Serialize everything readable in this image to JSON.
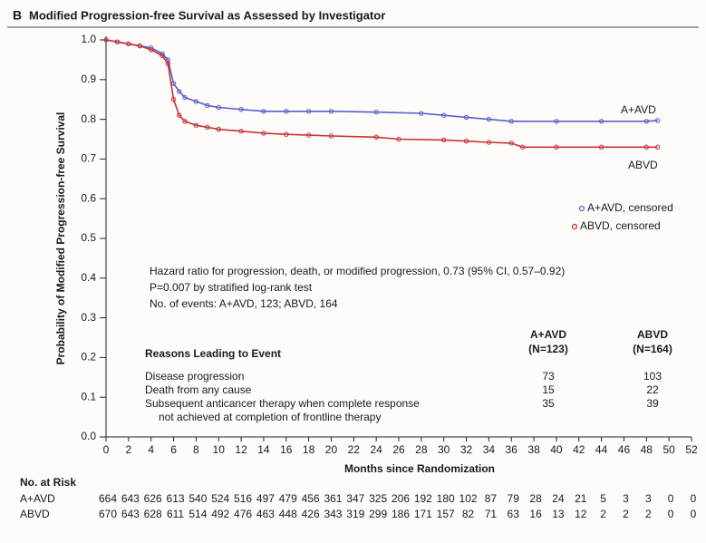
{
  "chart_data": {
    "type": "line",
    "panel": "B",
    "title": "Modified Progression-free Survival as Assessed by Investigator",
    "x_label": "Months since Randomization",
    "y_label": "Probability of Modified Progression-free Survival",
    "xlim": [
      0,
      52
    ],
    "ylim": [
      0,
      1
    ],
    "xticks": [
      0,
      2,
      4,
      6,
      8,
      10,
      12,
      14,
      16,
      18,
      20,
      22,
      24,
      26,
      28,
      30,
      32,
      34,
      36,
      38,
      40,
      42,
      44,
      46,
      48,
      50,
      52
    ],
    "yticks": [
      {
        "value": 0,
        "label": "0.0"
      },
      0.1,
      0.2,
      0.3,
      0.4,
      0.5,
      0.6,
      0.7,
      0.8,
      0.9,
      {
        "value": 1,
        "label": "1.0"
      }
    ],
    "series": [
      {
        "name": "A+AVD",
        "censored_label": "A+AVD, censored",
        "color": "#5a5fd0",
        "x": [
          0,
          1,
          2,
          3,
          4,
          5,
          5.5,
          6,
          6.5,
          7,
          8,
          9,
          10,
          12,
          14,
          16,
          18,
          20,
          24,
          28,
          30,
          32,
          34,
          36,
          40,
          44,
          48,
          49
        ],
        "values": [
          1.0,
          0.995,
          0.99,
          0.985,
          0.98,
          0.965,
          0.95,
          0.89,
          0.87,
          0.855,
          0.845,
          0.835,
          0.83,
          0.825,
          0.82,
          0.82,
          0.82,
          0.82,
          0.818,
          0.815,
          0.81,
          0.805,
          0.8,
          0.795,
          0.795,
          0.795,
          0.795,
          0.797
        ]
      },
      {
        "name": "ABVD",
        "censored_label": "ABVD, censored",
        "color": "#c8323a",
        "x": [
          0,
          1,
          2,
          3,
          4,
          5,
          5.5,
          6,
          6.5,
          7,
          8,
          9,
          10,
          12,
          14,
          16,
          18,
          20,
          24,
          26,
          30,
          32,
          34,
          36,
          37,
          40,
          44,
          48,
          49
        ],
        "values": [
          1.0,
          0.995,
          0.99,
          0.985,
          0.975,
          0.96,
          0.94,
          0.85,
          0.81,
          0.795,
          0.785,
          0.78,
          0.775,
          0.77,
          0.765,
          0.762,
          0.76,
          0.758,
          0.755,
          0.75,
          0.748,
          0.745,
          0.742,
          0.74,
          0.73,
          0.73,
          0.73,
          0.73,
          0.73
        ]
      }
    ],
    "annotations": [
      "Hazard ratio for progression, death, or modified progression, 0.73 (95% CI, 0.57–0.92)",
      "P=0.007 by stratified log-rank test",
      "No. of events: A+AVD, 123; ABVD, 164"
    ],
    "reasons_table": {
      "title": "Reasons Leading to Event",
      "columns": [
        {
          "name": "A+AVD",
          "n": "(N=123)"
        },
        {
          "name": "ABVD",
          "n": "(N=164)"
        }
      ],
      "rows": [
        {
          "label": [
            "Disease progression"
          ],
          "values": [
            73,
            103
          ]
        },
        {
          "label": [
            "Death from any cause"
          ],
          "values": [
            15,
            22
          ]
        },
        {
          "label": [
            "Subsequent anticancer therapy when complete response",
            "not achieved at completion of frontline therapy"
          ],
          "values": [
            35,
            39
          ]
        }
      ]
    },
    "at_risk": {
      "title": "No. at Risk",
      "rows": [
        {
          "name": "A+AVD",
          "values": [
            664,
            643,
            626,
            613,
            540,
            524,
            516,
            497,
            479,
            456,
            361,
            347,
            325,
            206,
            192,
            180,
            102,
            87,
            79,
            28,
            24,
            21,
            5,
            3,
            3,
            0,
            0
          ]
        },
        {
          "name": "ABVD",
          "values": [
            670,
            643,
            628,
            611,
            514,
            492,
            476,
            463,
            448,
            426,
            343,
            319,
            299,
            186,
            171,
            157,
            82,
            71,
            63,
            16,
            13,
            12,
            2,
            2,
            2,
            0,
            0
          ]
        }
      ]
    }
  }
}
